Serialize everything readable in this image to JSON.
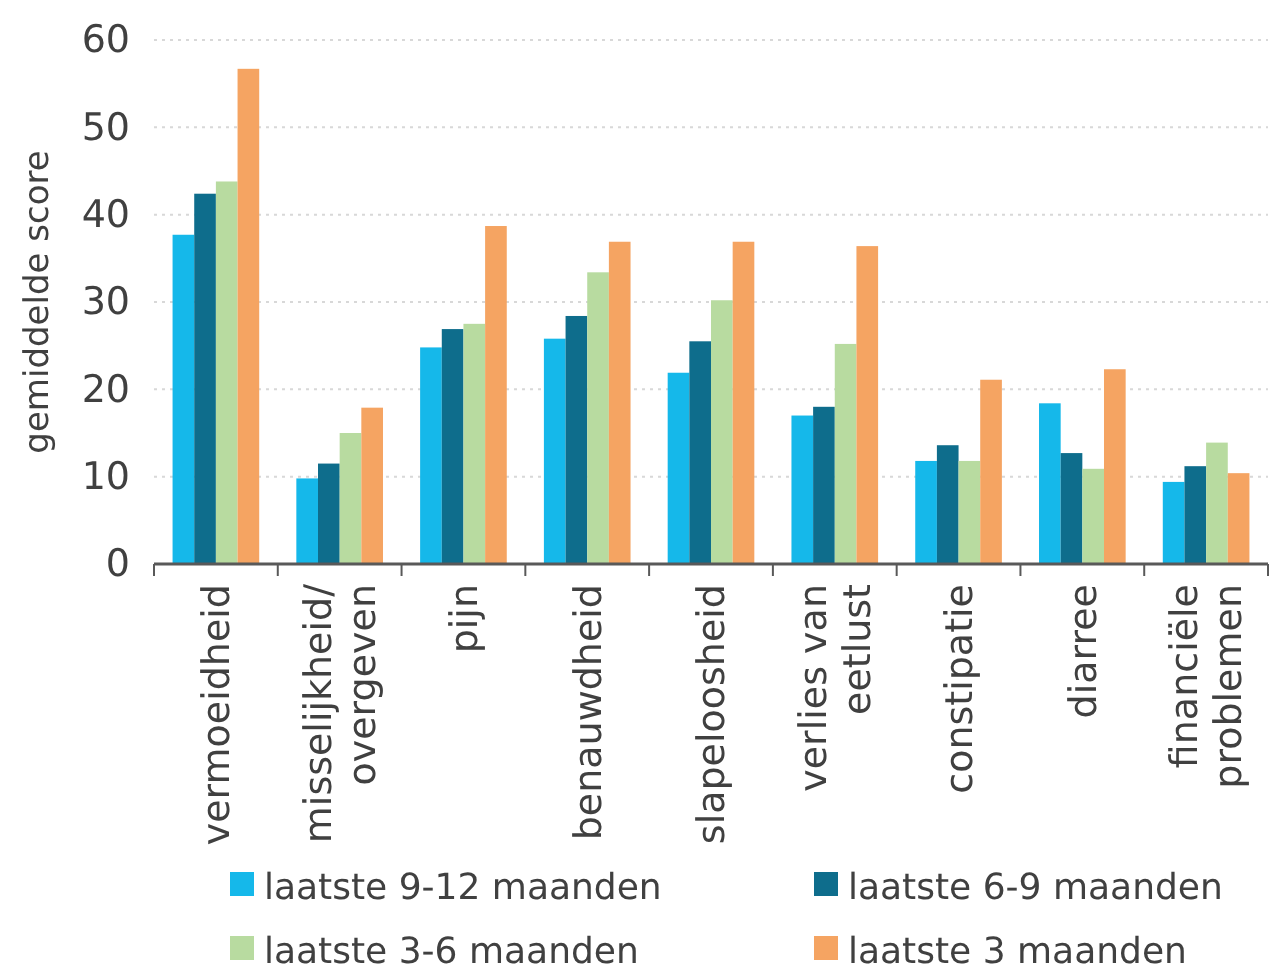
{
  "chart_data": {
    "type": "bar",
    "ylabel": "gemiddelde score",
    "categories": [
      "vermoeidheid",
      "misselijkheid/\novergeven",
      "pijn",
      "benauwdheid",
      "slapeloosheid",
      "verlies van\neetlust",
      "constipatie",
      "diarree",
      "financiële\nproblemen"
    ],
    "series": [
      {
        "name": "laatste 9-12 maanden",
        "color": "#15b8ea",
        "values": [
          37.7,
          9.8,
          24.8,
          25.8,
          21.9,
          17,
          11.8,
          18.4,
          9.4
        ]
      },
      {
        "name": "laatste 6-9 maanden",
        "color": "#0e6d8c",
        "values": [
          42.4,
          11.5,
          26.9,
          28.4,
          25.5,
          18,
          13.6,
          12.7,
          11.2
        ]
      },
      {
        "name": "laatste 3-6 maanden",
        "color": "#b8dba0",
        "values": [
          43.8,
          15,
          27.5,
          33.4,
          30.2,
          25.2,
          11.8,
          10.9,
          13.9
        ]
      },
      {
        "name": "laatste 3 maanden",
        "color": "#f5a462",
        "values": [
          56.7,
          17.9,
          38.7,
          36.9,
          36.9,
          36.4,
          21.1,
          22.3,
          10.4
        ]
      }
    ],
    "ylim": [
      0,
      60
    ],
    "yticks": [
      0,
      10,
      20,
      30,
      40,
      50,
      60
    ],
    "grid": "y",
    "legend": "bottom"
  }
}
